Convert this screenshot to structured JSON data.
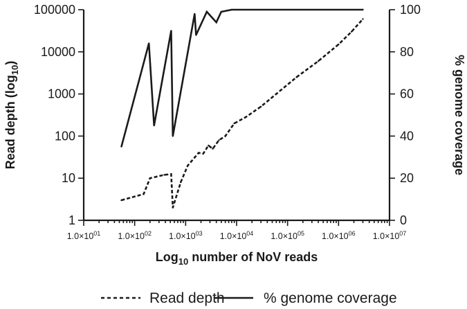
{
  "chart_data": {
    "type": "line",
    "xscale": "log",
    "x_tick_values": [
      10,
      100,
      1000,
      10000,
      100000,
      1000000,
      10000000
    ],
    "x_tick_labels": [
      {
        "mant": "1.0",
        "times": "×",
        "base": "10",
        "exp": "01"
      },
      {
        "mant": "1.0",
        "times": "×",
        "base": "10",
        "exp": "02"
      },
      {
        "mant": "1.0",
        "times": "×",
        "base": "10",
        "exp": "03"
      },
      {
        "mant": "1.0",
        "times": "×",
        "base": "10",
        "exp": "04"
      },
      {
        "mant": "1.0",
        "times": "×",
        "base": "10",
        "exp": "05"
      },
      {
        "mant": "1.0",
        "times": "×",
        "base": "10",
        "exp": "06"
      },
      {
        "mant": "1.0",
        "times": "×",
        "base": "10",
        "exp": "07"
      }
    ],
    "xlim": [
      10,
      10000000
    ],
    "xlabel": {
      "pre": "Log",
      "sub": "10",
      "post": " number of NoV reads"
    },
    "y_left": {
      "scale": "log",
      "ylim": [
        1,
        100000
      ],
      "tick_values": [
        1,
        10,
        100,
        1000,
        10000,
        100000
      ],
      "tick_labels": [
        "1",
        "10",
        "100",
        "1000",
        "10000",
        "100000"
      ],
      "label": {
        "pre": "Read depth (log",
        "sub": "10",
        "post": ")"
      }
    },
    "y_right": {
      "scale": "linear",
      "ylim": [
        0,
        100
      ],
      "tick_values": [
        0,
        20,
        40,
        60,
        80,
        100
      ],
      "tick_labels": [
        "0",
        "20",
        "40",
        "60",
        "80",
        "100"
      ],
      "label": "% genome coverage"
    },
    "series": [
      {
        "name": "Read depth",
        "axis": "left",
        "style": "dashed",
        "points": [
          [
            55,
            3
          ],
          [
            150,
            4.2
          ],
          [
            200,
            10
          ],
          [
            380,
            12
          ],
          [
            520,
            12.5
          ],
          [
            560,
            2
          ],
          [
            800,
            8
          ],
          [
            1100,
            20
          ],
          [
            1800,
            40
          ],
          [
            2200,
            38
          ],
          [
            2800,
            60
          ],
          [
            3400,
            50
          ],
          [
            4500,
            80
          ],
          [
            6000,
            100
          ],
          [
            9000,
            200
          ],
          [
            15000,
            280
          ],
          [
            30000,
            500
          ],
          [
            60000,
            1000
          ],
          [
            150000,
            2500
          ],
          [
            400000,
            6000
          ],
          [
            1000000,
            15000
          ],
          [
            1800000,
            30000
          ],
          [
            3000000,
            60000
          ]
        ]
      },
      {
        "name": "% genome coverage",
        "axis": "right",
        "style": "solid",
        "points": [
          [
            55,
            35
          ],
          [
            190,
            84
          ],
          [
            240,
            45
          ],
          [
            520,
            90
          ],
          [
            560,
            40
          ],
          [
            1500,
            98
          ],
          [
            1600,
            88
          ],
          [
            2600,
            99
          ],
          [
            4000,
            94
          ],
          [
            5000,
            99
          ],
          [
            8000,
            100
          ],
          [
            3000000,
            100
          ]
        ]
      }
    ],
    "legend": {
      "placement": "bottom-center"
    },
    "grid": false,
    "colors": {
      "line": "#1a1a1a",
      "background": "#ffffff"
    }
  }
}
